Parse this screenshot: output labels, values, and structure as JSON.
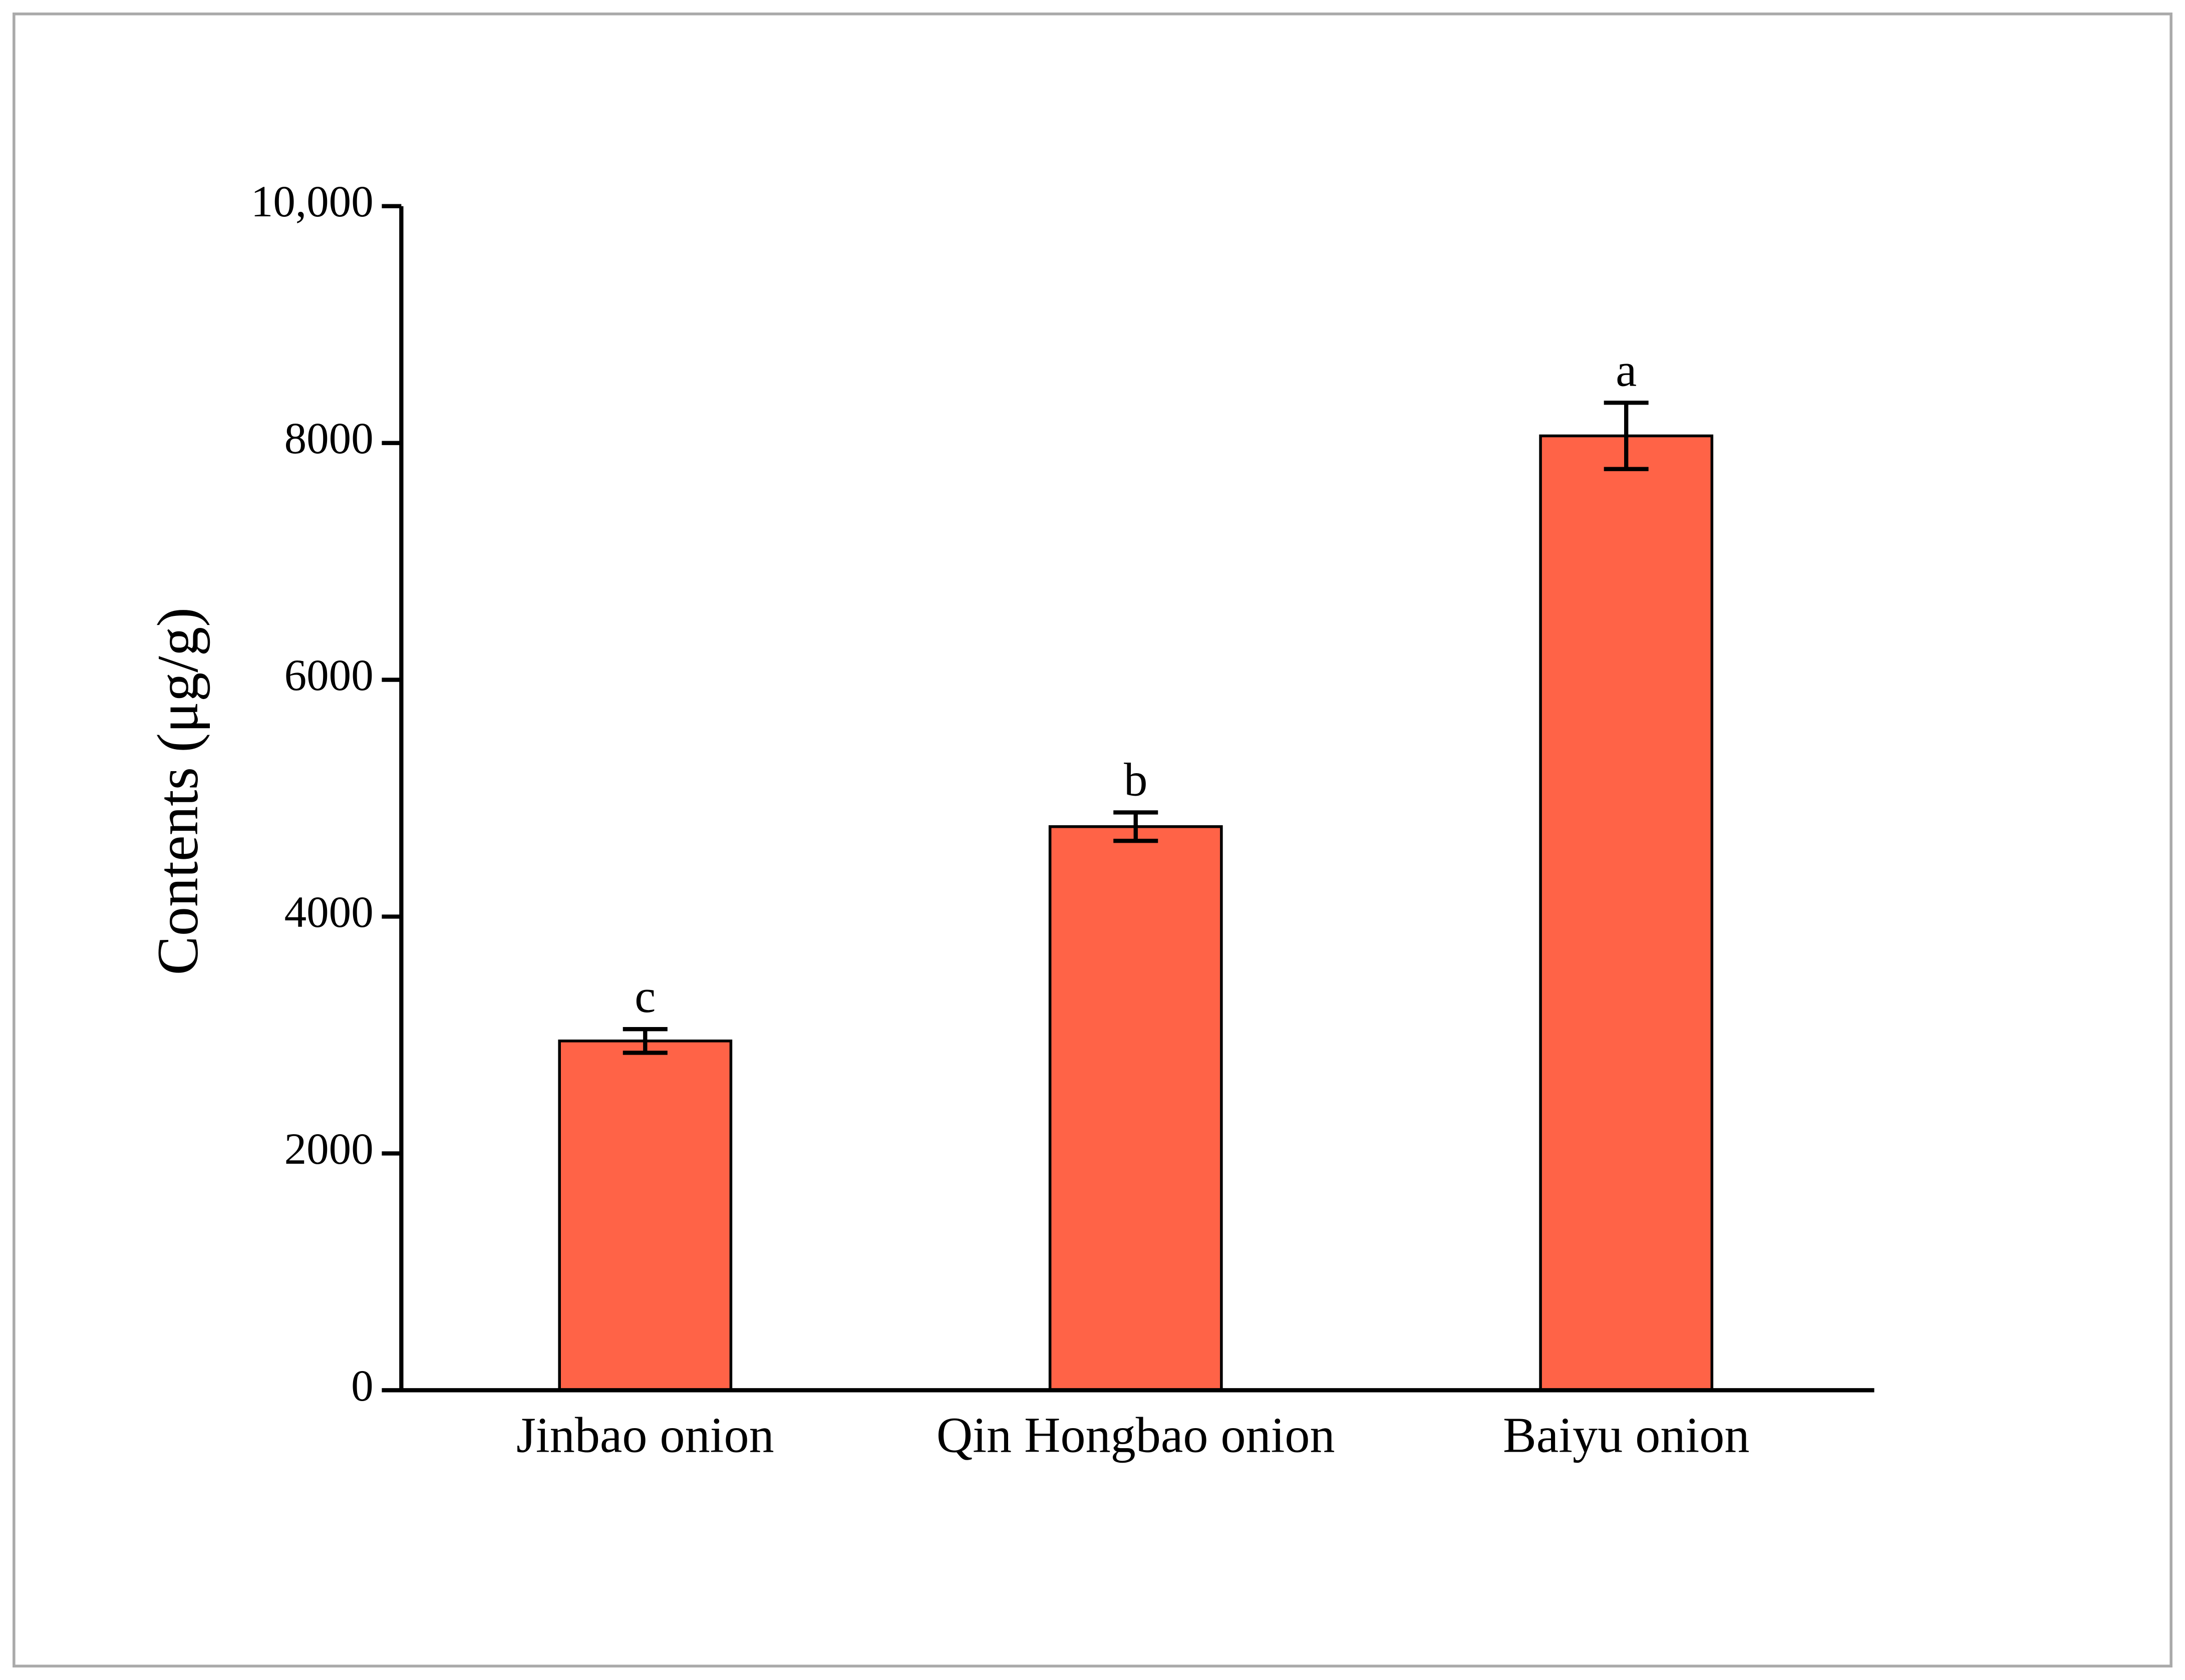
{
  "chart_data": {
    "type": "bar",
    "y_label": "Contents (μg/g)",
    "categories": [
      "Jinbao onion",
      "Qin Hongbao onion",
      "Baiyu onion"
    ],
    "values": [
      2950,
      4760,
      8060
    ],
    "errors": [
      100,
      120,
      280
    ],
    "annotations": [
      "c",
      "b",
      "a"
    ],
    "color": "#ff6347",
    "ylim": [
      0,
      10000
    ],
    "yticks": [
      0,
      2000,
      4000,
      6000,
      8000,
      {
        "value": 10000,
        "label": "10,000"
      }
    ],
    "grid": false
  }
}
